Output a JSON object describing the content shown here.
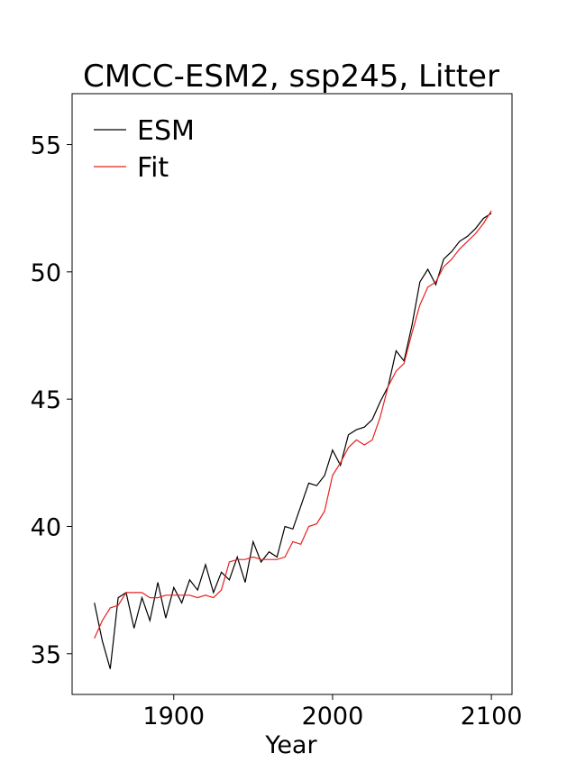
{
  "chart_data": {
    "type": "line",
    "title": "CMCC-ESM2, ssp245, Litter",
    "xlabel": "Year",
    "ylabel": "",
    "xlim": [
      1836,
      2113
    ],
    "ylim": [
      33.4,
      57.0
    ],
    "xticks": [
      1900,
      2000,
      2100
    ],
    "yticks": [
      35,
      40,
      45,
      50,
      55
    ],
    "grid": false,
    "legend_position": "top-left",
    "series": [
      {
        "name": "ESM",
        "color": "#000000",
        "x": [
          1850,
          1855,
          1860,
          1865,
          1870,
          1875,
          1880,
          1885,
          1890,
          1895,
          1900,
          1905,
          1910,
          1915,
          1920,
          1925,
          1930,
          1935,
          1940,
          1945,
          1950,
          1955,
          1960,
          1965,
          1970,
          1975,
          1980,
          1985,
          1990,
          1995,
          2000,
          2005,
          2010,
          2015,
          2020,
          2025,
          2030,
          2035,
          2040,
          2045,
          2050,
          2055,
          2060,
          2065,
          2070,
          2075,
          2080,
          2085,
          2090,
          2095,
          2100
        ],
        "y": [
          37.0,
          35.5,
          34.4,
          37.2,
          37.4,
          36.0,
          37.2,
          36.3,
          37.8,
          36.4,
          37.6,
          37.0,
          37.9,
          37.5,
          38.5,
          37.4,
          38.2,
          37.9,
          38.8,
          37.8,
          39.4,
          38.6,
          39.0,
          38.8,
          40.0,
          39.9,
          40.8,
          41.7,
          41.6,
          42.0,
          43.0,
          42.4,
          43.6,
          43.8,
          43.9,
          44.2,
          44.9,
          45.5,
          46.9,
          46.5,
          47.9,
          49.6,
          50.1,
          49.5,
          50.5,
          50.8,
          51.2,
          51.4,
          51.7,
          52.1,
          52.3
        ]
      },
      {
        "name": "Fit",
        "color": "#e8211f",
        "x": [
          1850,
          1855,
          1860,
          1865,
          1870,
          1875,
          1880,
          1885,
          1890,
          1895,
          1900,
          1905,
          1910,
          1915,
          1920,
          1925,
          1930,
          1935,
          1940,
          1945,
          1950,
          1955,
          1960,
          1965,
          1970,
          1975,
          1980,
          1985,
          1990,
          1995,
          2000,
          2005,
          2010,
          2015,
          2020,
          2025,
          2030,
          2035,
          2040,
          2045,
          2050,
          2055,
          2060,
          2065,
          2070,
          2075,
          2080,
          2085,
          2090,
          2095,
          2100
        ],
        "y": [
          35.6,
          36.3,
          36.8,
          36.9,
          37.4,
          37.4,
          37.4,
          37.2,
          37.2,
          37.3,
          37.3,
          37.3,
          37.3,
          37.2,
          37.3,
          37.2,
          37.5,
          38.6,
          38.7,
          38.7,
          38.8,
          38.7,
          38.7,
          38.7,
          38.8,
          39.4,
          39.3,
          40.0,
          40.1,
          40.6,
          42.0,
          42.5,
          43.1,
          43.4,
          43.2,
          43.4,
          44.3,
          45.5,
          46.1,
          46.4,
          47.6,
          48.7,
          49.4,
          49.6,
          50.2,
          50.5,
          50.9,
          51.2,
          51.5,
          51.9,
          52.4
        ]
      }
    ]
  }
}
